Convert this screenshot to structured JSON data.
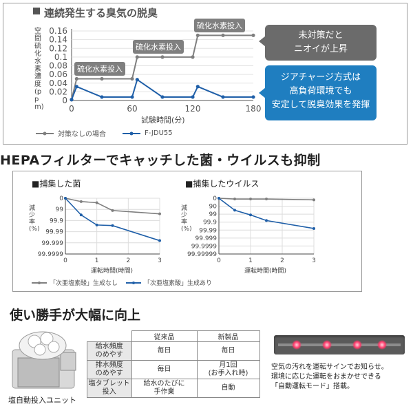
{
  "top_panel": {
    "title": "連続発生する臭気の脱臭",
    "ylabel": "空間硫化水素濃度 (ppm)",
    "xlabel": "試験時間(分)",
    "annotations": [
      "硫化水素投入",
      "硫化水素投入",
      "硫化水素投入"
    ],
    "callout_grey": [
      "未対策だと",
      "ニオイが上昇"
    ],
    "callout_blue": [
      "ジアチャージ方式は",
      "高負荷環境でも",
      "安定して脱臭効果を発揮"
    ],
    "legend": [
      "対策なしの場合",
      "F-JDU55"
    ]
  },
  "hepa_banner": "HEPAフィルターでキャッチした菌・ウイルスも抑制",
  "bacteria_panel": {
    "title": "捕集した菌",
    "ylabel": "減少率(%)",
    "xlabel": "運転時間(時間)"
  },
  "virus_panel": {
    "title": "捕集したウイルス",
    "ylabel": "減少率(%)",
    "xlabel": "運転時間(時間)"
  },
  "mid_legend": [
    "「次亜塩素酸」生成なし",
    "「次亜塩素酸」生成あり"
  ],
  "usability_banner": "使い勝手が大幅に向上",
  "unit_caption": "塩自動投入ユニット",
  "table": {
    "headers": [
      "",
      "従来品",
      "新製品"
    ],
    "rows": [
      [
        "給水頻度\nのめやす",
        "毎日",
        "毎日"
      ],
      [
        "排水頻度\nのめやす",
        "毎日",
        "月1回\n(お手入れ時)"
      ],
      [
        "塩タブレット\n投入",
        "給水のたびに\n手作業",
        "自動"
      ]
    ]
  },
  "sign_text": [
    "空気の汚れを運転サインでお知らせ。",
    "環境に応じた運転をおまかせできる",
    "「自動運転モード」搭載。"
  ],
  "colors": {
    "grey_series": "#7f7f7f",
    "blue_series": "#1f5fa8",
    "callout_blue": "#1f7ec0",
    "callout_grey": "#6b6b6b",
    "sign_led": "#ff3a6a"
  },
  "chart_data": [
    {
      "type": "line",
      "title": "連続発生する臭気の脱臭",
      "xlabel": "試験時間(分)",
      "ylabel": "空間硫化水素濃度 (ppm)",
      "xlim": [
        0,
        180
      ],
      "ylim": [
        0,
        0.16
      ],
      "xticks": [
        0,
        60,
        120,
        180
      ],
      "yticks": [
        0,
        0.02,
        0.04,
        0.06,
        0.08,
        0.1,
        0.12,
        0.14,
        0.16
      ],
      "series": [
        {
          "name": "対策なしの場合",
          "x": [
            0,
            5,
            30,
            60,
            65,
            90,
            120,
            125,
            150,
            180
          ],
          "y": [
            0.002,
            0.05,
            0.05,
            0.05,
            0.1,
            0.1,
            0.1,
            0.15,
            0.15,
            0.15
          ]
        },
        {
          "name": "F-JDU55",
          "x": [
            0,
            5,
            30,
            60,
            65,
            90,
            120,
            125,
            150,
            180
          ],
          "y": [
            0.002,
            0.032,
            0.008,
            0.008,
            0.048,
            0.008,
            0.008,
            0.032,
            0.008,
            0.008
          ]
        }
      ]
    },
    {
      "type": "line",
      "title": "捕集した菌",
      "xlabel": "運転時間(時間)",
      "ylabel": "減少率(%)",
      "xlim": [
        0,
        3
      ],
      "yticks": [
        "0",
        "99",
        "99.9",
        "99.99",
        "99.999",
        "99.9999"
      ],
      "series": [
        {
          "name": "「次亜塩素酸」生成なし",
          "x": [
            0,
            0.5,
            1,
            1.5,
            3
          ],
          "y_level": [
            0,
            0.3,
            0.4,
            1.1,
            1.4
          ]
        },
        {
          "name": "「次亜塩素酸」生成あり",
          "x": [
            0,
            0.5,
            1,
            1.5,
            3
          ],
          "y_level": [
            0,
            1.5,
            2.4,
            2.45,
            3.8
          ]
        }
      ]
    },
    {
      "type": "line",
      "title": "捕集したウイルス",
      "xlabel": "運転時間(時間)",
      "ylabel": "減少率(%)",
      "xlim": [
        0,
        3
      ],
      "yticks": [
        "0",
        "90",
        "99",
        "99.9",
        "99.99",
        "99.999",
        "99.9999",
        "99.99999"
      ],
      "series": [
        {
          "name": "「次亜塩素酸」生成なし",
          "x": [
            0,
            0.5,
            1,
            1.5,
            3
          ],
          "y_level": [
            0,
            0.1,
            0.1,
            0.1,
            0.2
          ]
        },
        {
          "name": "「次亜塩素酸」生成あり",
          "x": [
            0,
            0.5,
            1,
            1.5,
            3
          ],
          "y_level": [
            0,
            1.5,
            2.1,
            2.8,
            3.8
          ]
        }
      ]
    }
  ]
}
